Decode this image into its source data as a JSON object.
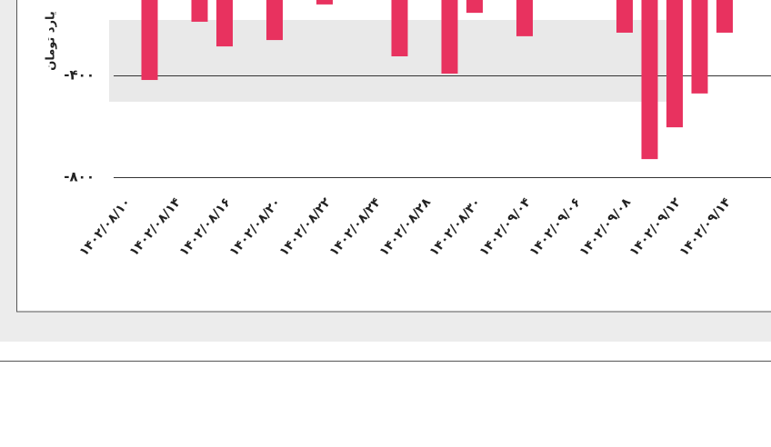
{
  "chart_data": {
    "type": "bar",
    "y_axis_label": "یارد تومان",
    "categories": [
      "۱۴۰۲/۰۸/۱۰",
      null,
      "۱۴۰۲/۰۸/۱۴",
      null,
      "۱۴۰۲/۰۸/۱۶",
      null,
      "۱۴۰۲/۰۸/۲۰",
      null,
      "۱۴۰۲/۰۸/۲۲",
      null,
      "۱۴۰۲/۰۸/۲۴",
      null,
      "۱۴۰۲/۰۸/۲۸",
      null,
      "۱۴۰۲/۰۸/۳۰",
      null,
      "۱۴۰۲/۰۹/۰۴",
      null,
      "۱۴۰۲/۰۹/۰۶",
      null,
      "۱۴۰۲/۰۹/۰۸",
      null,
      "۱۴۰۲/۰۹/۱۲",
      null,
      "۱۴۰۲/۰۹/۱۴"
    ],
    "values": [
      null,
      -418,
      null,
      -189,
      -286,
      null,
      -261,
      null,
      -121,
      null,
      null,
      -325,
      null,
      -393,
      -154,
      null,
      -246,
      null,
      null,
      null,
      -232,
      -729,
      -604,
      -471,
      -232
    ],
    "color": "#e8325f",
    "ylim": [
      -800,
      0
    ],
    "yticks": [
      {
        "value": -800,
        "label": "-۸۰۰"
      },
      {
        "value": -400,
        "label": "-۴۰۰"
      }
    ],
    "grid": true
  }
}
